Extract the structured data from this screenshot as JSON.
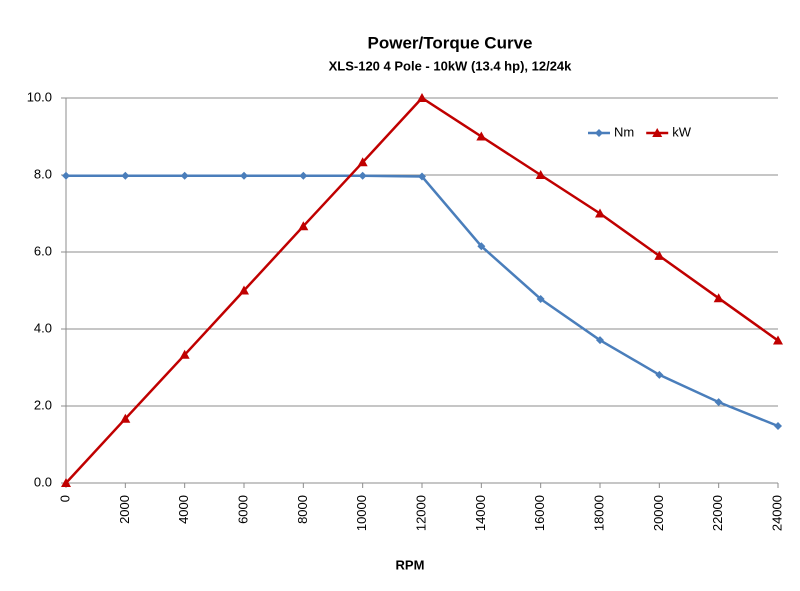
{
  "chart_data": {
    "type": "line",
    "title": "Power/Torque Curve",
    "subtitle": "XLS-120  4 Pole - 10kW (13.4 hp), 12/24k",
    "x_label": "RPM",
    "x": [
      0,
      2000,
      4000,
      6000,
      8000,
      10000,
      12000,
      14000,
      16000,
      18000,
      20000,
      22000,
      24000
    ],
    "series": [
      {
        "name": "Nm",
        "color": "#4a7ebb",
        "marker": "diamond",
        "values": [
          7.98,
          7.98,
          7.98,
          7.98,
          7.98,
          7.98,
          7.96,
          6.15,
          4.78,
          3.71,
          2.81,
          2.1,
          1.48
        ]
      },
      {
        "name": "kW",
        "color": "#c00000",
        "marker": "triangle",
        "values": [
          0,
          1.67,
          3.33,
          5.0,
          6.67,
          8.33,
          10.0,
          9.0,
          8.0,
          7.0,
          5.9,
          4.8,
          3.7
        ]
      }
    ],
    "xlim": [
      0,
      24000
    ],
    "xticks": [
      0,
      2000,
      4000,
      6000,
      8000,
      10000,
      12000,
      14000,
      16000,
      18000,
      20000,
      22000,
      24000
    ],
    "ylim": [
      0,
      10
    ],
    "yticks": [
      {
        "value": 0,
        "label": "0.0"
      },
      {
        "value": 2,
        "label": "2.0"
      },
      {
        "value": 4,
        "label": "4.0"
      },
      {
        "value": 6,
        "label": "6.0"
      },
      {
        "value": 8,
        "label": "8.0"
      },
      {
        "value": 10,
        "label": "10.0"
      }
    ],
    "grid": true,
    "legend": "upper right"
  }
}
